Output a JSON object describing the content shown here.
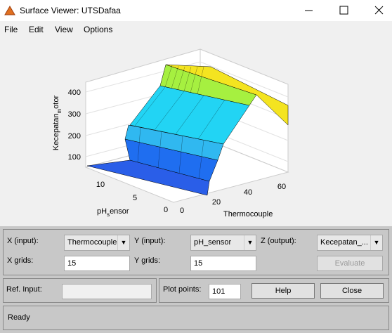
{
  "window": {
    "title": "Surface Viewer: UTSDafaa"
  },
  "menu": [
    "File",
    "Edit",
    "View",
    "Options"
  ],
  "plot": {
    "z_label": {
      "main": "Kecepatan",
      "sub": "m",
      "rest": "otor"
    },
    "z_ticks": [
      "100",
      "200",
      "300",
      "400"
    ],
    "y_label": {
      "main": "pH",
      "sub": "s",
      "rest": "ensor"
    },
    "y_ticks": [
      "10",
      "5",
      "0"
    ],
    "x_label": "Thermocouple",
    "x_ticks": [
      "0",
      "20",
      "40",
      "60"
    ]
  },
  "controls": {
    "x_input_label": "X (input):",
    "x_input": "Thermocouple",
    "y_input_label": "Y (input):",
    "y_input": "pH_sensor",
    "z_output_label": "Z (output):",
    "z_output": "Kecepatan_...",
    "x_grids_label": "X grids:",
    "x_grids": "15",
    "y_grids_label": "Y grids:",
    "y_grids": "15",
    "evaluate": "Evaluate",
    "ref_input_label": "Ref. Input:",
    "plot_points_label": "Plot points:",
    "plot_points": "101",
    "help": "Help",
    "close": "Close"
  },
  "status": "Ready"
}
